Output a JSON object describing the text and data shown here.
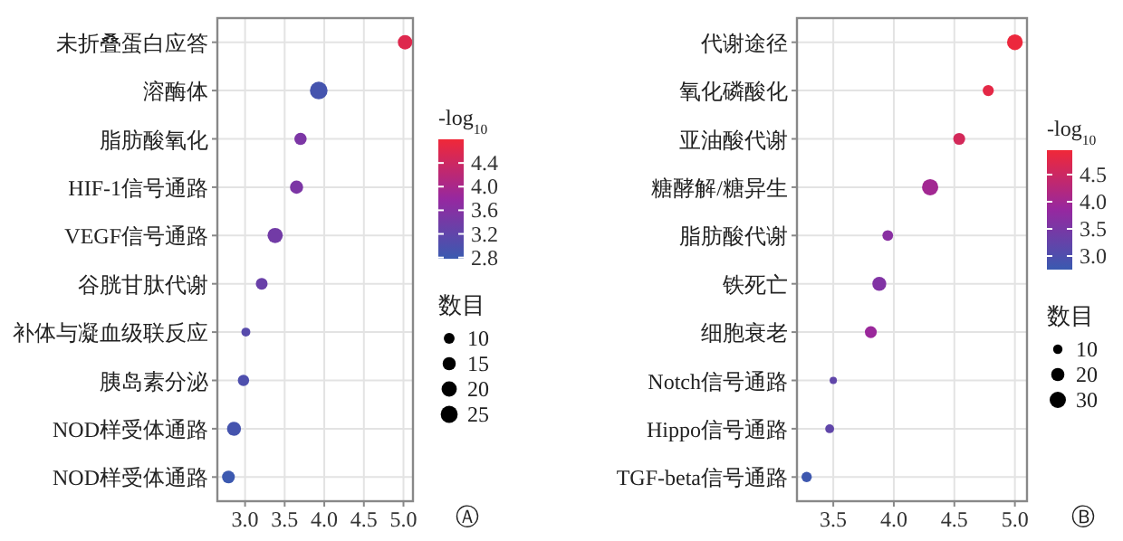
{
  "chart_data": [
    {
      "type": "bubble",
      "orientation": "horizontal",
      "categories": [
        "未折叠蛋白应答",
        "溶酶体",
        "脂肪酸氧化",
        "HIF-1信号通路",
        "VEGF信号通路",
        "谷胱甘肽代谢",
        "补体与凝血级联反应",
        "胰岛素分泌",
        "NOD样受体通路",
        "NOD样受体通路"
      ],
      "values": [
        5.02,
        3.93,
        3.7,
        3.65,
        3.38,
        3.21,
        3.01,
        2.98,
        2.86,
        2.79
      ],
      "sizes": [
        18,
        27,
        13,
        15,
        20,
        12,
        7,
        11,
        17,
        14
      ],
      "size_legend": [
        10,
        15,
        20,
        25
      ],
      "cvalues": [
        4.6,
        2.9,
        3.5,
        3.5,
        3.4,
        3.3,
        3.1,
        3.0,
        2.9,
        2.8
      ],
      "clim": [
        2.78,
        4.8
      ],
      "cticks": [
        {
          "value": 2.8,
          "label": "2.8"
        },
        {
          "value": 3.2,
          "label": "3.2"
        },
        {
          "value": 3.6,
          "label": "3.6"
        },
        {
          "value": 4.0,
          "label": "4.0"
        },
        {
          "value": 4.4,
          "label": "4.4"
        }
      ],
      "clabel": "-log$_{10}$",
      "legend_title": "数目",
      "xlim": [
        2.65,
        5.12
      ],
      "xticks": [
        {
          "value": 3.0,
          "label": "3.0"
        },
        {
          "value": 3.5,
          "label": "3.5"
        },
        {
          "value": 4.0,
          "label": "4.0"
        },
        {
          "value": 4.5,
          "label": "4.5"
        },
        {
          "value": 5.0,
          "label": "5.0"
        }
      ],
      "grid": true,
      "annotations": [
        "Ⓐ"
      ]
    },
    {
      "type": "bubble",
      "orientation": "horizontal",
      "categories": [
        "代谢途径",
        "氧化磷酸化",
        "亚油酸代谢",
        "糖酵解/糖异生",
        "脂肪酸代谢",
        "铁死亡",
        "细胞衰老",
        "Notch信号通路",
        "Hippo信号通路",
        "TGF-beta信号通路"
      ],
      "values": [
        5.0,
        4.78,
        4.54,
        4.3,
        3.95,
        3.88,
        3.81,
        3.5,
        3.47,
        3.28
      ],
      "sizes": [
        28,
        14,
        16,
        30,
        13,
        22,
        16,
        6,
        9,
        12
      ],
      "size_legend": [
        10,
        20,
        30
      ],
      "cvalues": [
        4.9,
        4.8,
        4.6,
        4.0,
        3.7,
        3.6,
        3.9,
        3.2,
        3.2,
        2.8
      ],
      "clim": [
        2.75,
        4.95
      ],
      "cticks": [
        {
          "value": 3.0,
          "label": "3.0"
        },
        {
          "value": 3.5,
          "label": "3.5"
        },
        {
          "value": 4.0,
          "label": "4.0"
        },
        {
          "value": 4.5,
          "label": "4.5"
        }
      ],
      "clabel": "-log$_{10}$",
      "legend_title": "数目",
      "xlim": [
        3.2,
        5.1
      ],
      "xticks": [
        {
          "value": 3.5,
          "label": "3.5"
        },
        {
          "value": 4.0,
          "label": "4.0"
        },
        {
          "value": 4.5,
          "label": "4.5"
        },
        {
          "value": 5.0,
          "label": "5.0"
        }
      ],
      "grid": true,
      "annotations": [
        "Ⓑ"
      ]
    }
  ]
}
